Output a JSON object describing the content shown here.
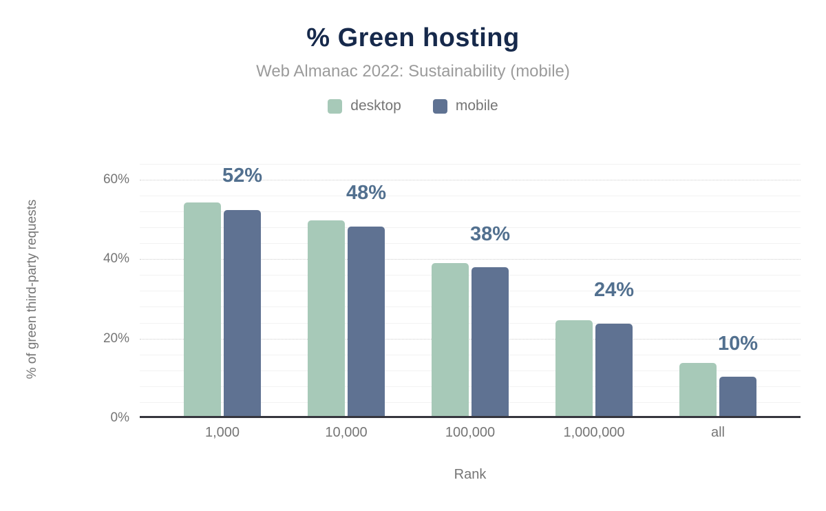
{
  "chart": {
    "title": "% Green hosting",
    "subtitle": "Web Almanac 2022: Sustainability (mobile)"
  },
  "legend": {
    "items": [
      {
        "label": "desktop",
        "color": "#a7c9b8"
      },
      {
        "label": "mobile",
        "color": "#5f7292"
      }
    ]
  },
  "chart_data": {
    "type": "bar",
    "title": "% Green hosting",
    "subtitle": "Web Almanac 2022: Sustainability (mobile)",
    "categories": [
      "1,000",
      "10,000",
      "100,000",
      "1,000,000",
      "all"
    ],
    "series": [
      {
        "name": "desktop",
        "color": "#a7c9b8",
        "values": [
          54.2,
          49.6,
          38.8,
          24.3,
          13.5
        ]
      },
      {
        "name": "mobile",
        "color": "#5f7292",
        "values": [
          52.3,
          48.1,
          37.7,
          23.5,
          10.0
        ]
      }
    ],
    "data_labels": [
      "52%",
      "48%",
      "38%",
      "24%",
      "10%"
    ],
    "data_labels_on_series": "mobile",
    "xlabel": "Rank",
    "ylabel": "% of green third-party requests",
    "y_ticks": [
      0,
      20,
      40,
      60
    ],
    "y_tick_labels": [
      "0%",
      "20%",
      "40%",
      "60%"
    ],
    "ylim": [
      0,
      65
    ],
    "minor_grid_step": 4,
    "grid": "horizontal",
    "legend_position": "top"
  },
  "colors": {
    "title": "#16294b",
    "subtitle": "#9b9b9b",
    "axis_text": "#757575",
    "data_label": "#52708f",
    "major_grid": "#cccccc",
    "minor_grid": "#f2f2f2",
    "axis_line": "#35353d",
    "background": "#ffffff"
  }
}
